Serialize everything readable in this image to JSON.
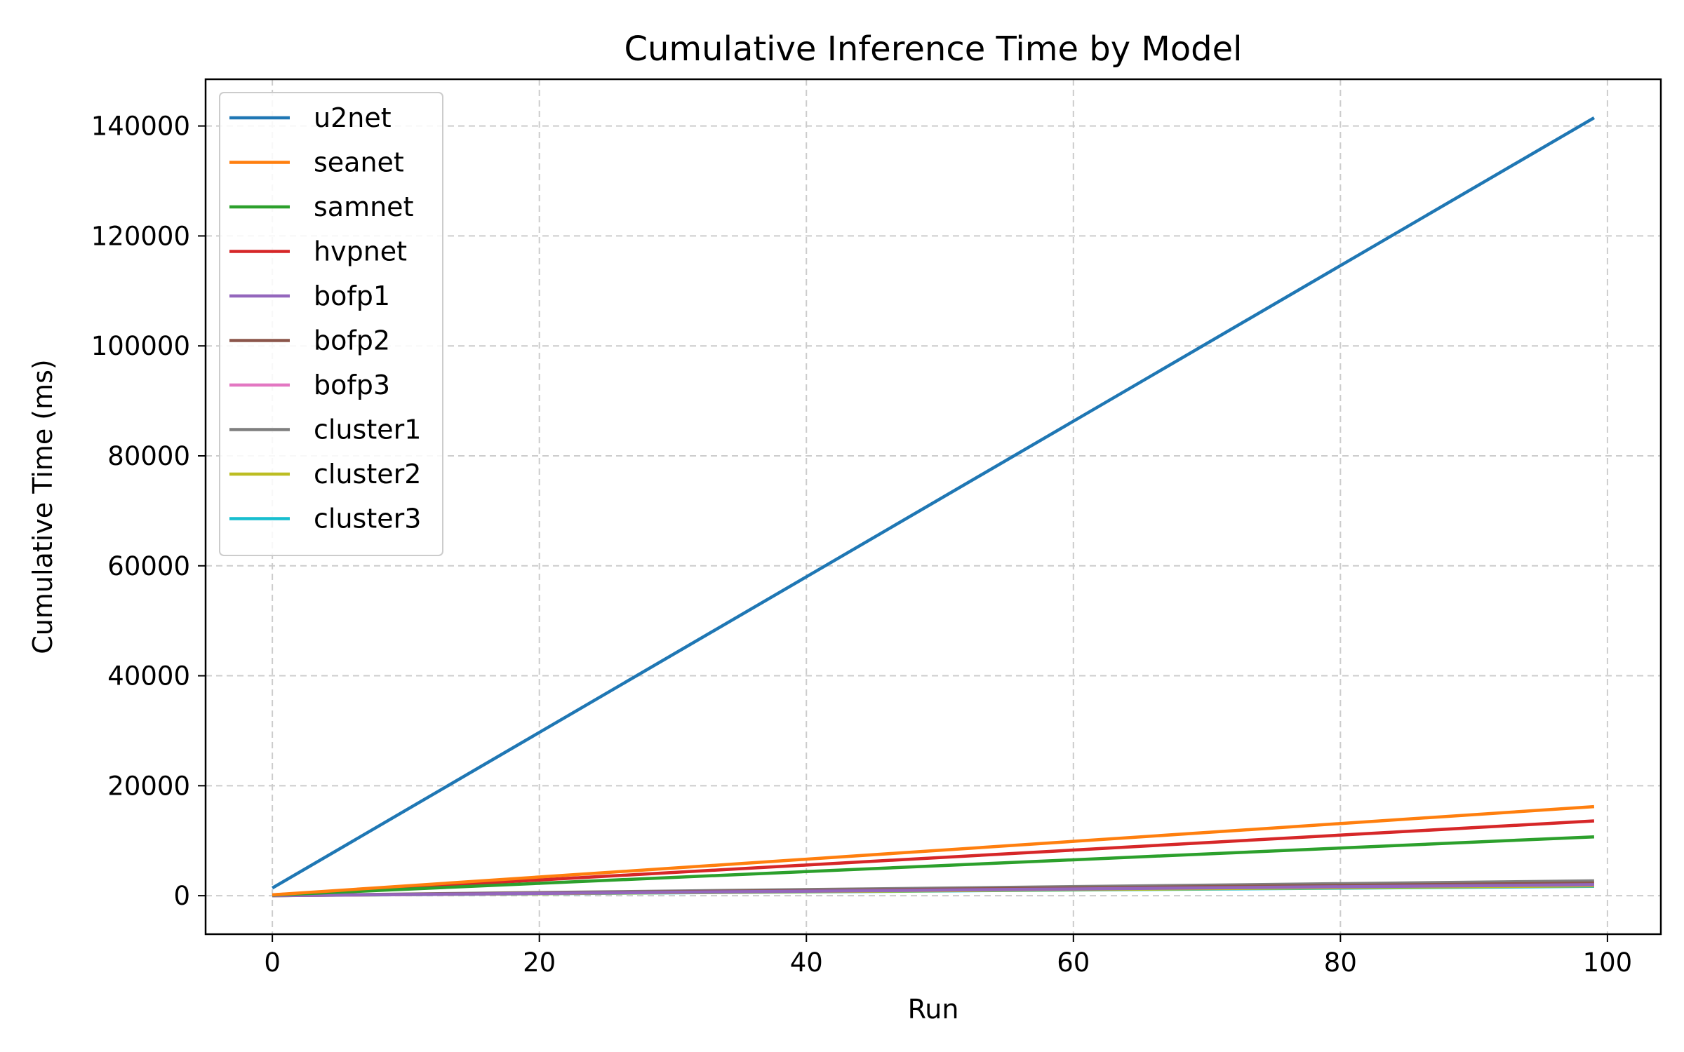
{
  "chart_data": {
    "type": "line",
    "title": "Cumulative Inference Time by Model",
    "xlabel": "Run",
    "ylabel": "Cumulative Time (ms)",
    "xlim": [
      -5,
      104
    ],
    "ylim": [
      -7000,
      148500
    ],
    "xticks": [
      0,
      20,
      40,
      60,
      80,
      100
    ],
    "yticks": [
      0,
      20000,
      40000,
      60000,
      80000,
      100000,
      120000,
      140000
    ],
    "grid": true,
    "legend_position": "upper-left",
    "series": [
      {
        "name": "u2net",
        "color": "#1f77b4",
        "x": [
          0,
          99
        ],
        "y": [
          1400,
          141500
        ]
      },
      {
        "name": "seanet",
        "color": "#ff7f0e",
        "x": [
          0,
          99
        ],
        "y": [
          160,
          16200
        ]
      },
      {
        "name": "samnet",
        "color": "#2ca02c",
        "x": [
          0,
          99
        ],
        "y": [
          110,
          10700
        ]
      },
      {
        "name": "hvpnet",
        "color": "#d62728",
        "x": [
          0,
          99
        ],
        "y": [
          140,
          13600
        ]
      },
      {
        "name": "bofp1",
        "color": "#9467bd",
        "x": [
          0,
          99
        ],
        "y": [
          20,
          2000
        ]
      },
      {
        "name": "bofp2",
        "color": "#8c564b",
        "x": [
          0,
          99
        ],
        "y": [
          22,
          2300
        ]
      },
      {
        "name": "bofp3",
        "color": "#e377c2",
        "x": [
          0,
          99
        ],
        "y": [
          20,
          2100
        ]
      },
      {
        "name": "cluster1",
        "color": "#7f7f7f",
        "x": [
          0,
          99
        ],
        "y": [
          27,
          2700
        ]
      },
      {
        "name": "cluster2",
        "color": "#bcbd22",
        "x": [
          0,
          99
        ],
        "y": [
          18,
          1800
        ]
      },
      {
        "name": "cluster3",
        "color": "#17becf",
        "x": [
          0,
          99
        ],
        "y": [
          16,
          1700
        ]
      }
    ]
  }
}
